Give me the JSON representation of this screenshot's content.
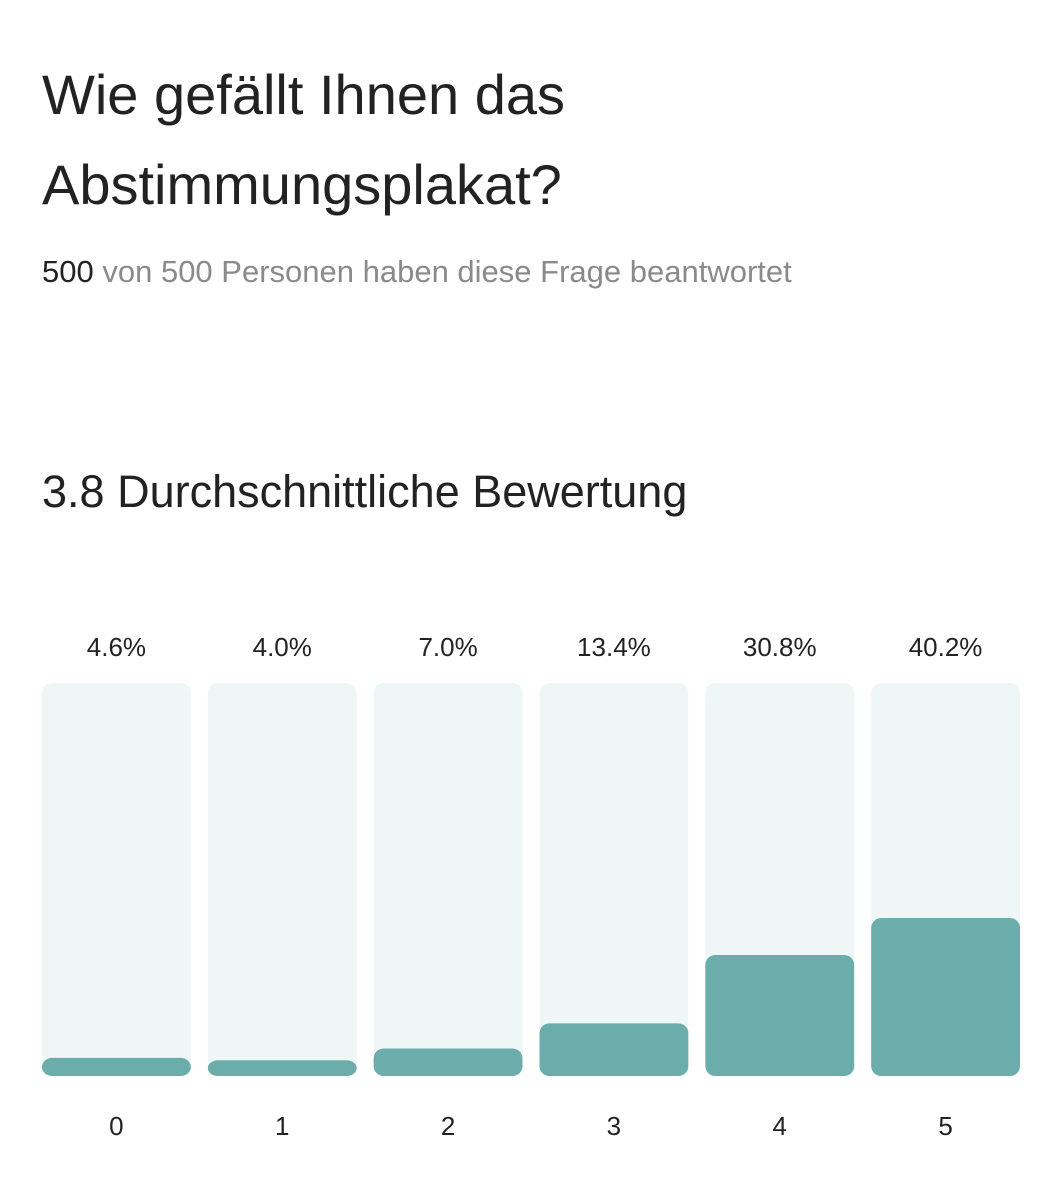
{
  "question": {
    "title": "Wie gefällt Ihnen das Abstimmungsplakat?",
    "answered": "500",
    "total_text": "von 500 Personen haben diese Frage beantwortet"
  },
  "average": {
    "value": "3.8",
    "label": "Durchschnittliche Bewertung"
  },
  "colors": {
    "bar_fill": "#6aadab",
    "bar_track": "#eff6f6"
  },
  "chart_data": {
    "type": "bar",
    "categories": [
      "0",
      "1",
      "2",
      "3",
      "4",
      "5"
    ],
    "values": [
      4.6,
      4.0,
      7.0,
      13.4,
      30.8,
      40.2
    ],
    "value_labels": [
      "4.6%",
      "4.0%",
      "7.0%",
      "13.4%",
      "30.8%",
      "40.2%"
    ],
    "ylim": [
      0,
      100
    ],
    "grid": false,
    "legend": "none"
  }
}
